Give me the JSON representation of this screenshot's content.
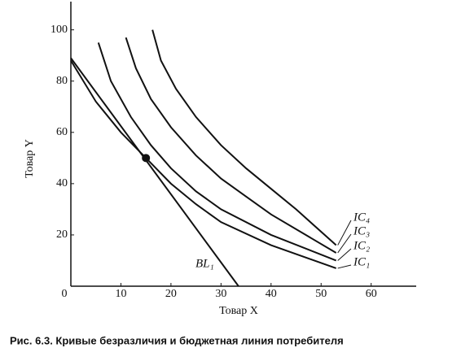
{
  "chart_data": {
    "type": "line",
    "caption": "Рис. 6.3. Кривые безразличия и бюджетная линия потребителя",
    "xlabel": "Товар X",
    "ylabel": "Товар Y",
    "xlim": [
      0,
      69
    ],
    "ylim": [
      0,
      111
    ],
    "xticks": [
      0,
      10,
      20,
      30,
      40,
      50,
      60
    ],
    "yticks": [
      20,
      40,
      60,
      80,
      100
    ],
    "color": "#111111",
    "series": [
      {
        "name": "IC₄",
        "x": [
          16.3,
          18,
          21,
          25,
          30,
          35,
          40,
          45,
          53
        ],
        "values": [
          100,
          88,
          77,
          66,
          55,
          46,
          38,
          30,
          16
        ]
      },
      {
        "name": "IC₃",
        "x": [
          11,
          13,
          16,
          20,
          25,
          30,
          35,
          40,
          53
        ],
        "values": [
          97,
          85,
          73,
          62,
          51,
          42,
          35,
          28,
          13
        ]
      },
      {
        "name": "IC₂",
        "x": [
          5.5,
          8,
          12,
          16,
          20,
          25,
          30,
          40,
          53
        ],
        "values": [
          95,
          80,
          66,
          55,
          46,
          37,
          30,
          20,
          10
        ]
      },
      {
        "name": "IC₁",
        "x": [
          0,
          5,
          10,
          15,
          20,
          25,
          30,
          40,
          53
        ],
        "values": [
          88,
          72,
          60,
          50,
          40,
          32,
          25,
          16,
          7
        ]
      },
      {
        "name": "BL₁",
        "x": [
          0,
          33.5
        ],
        "values": [
          89,
          0
        ]
      }
    ],
    "point": {
      "x": 15,
      "y": 50
    }
  }
}
